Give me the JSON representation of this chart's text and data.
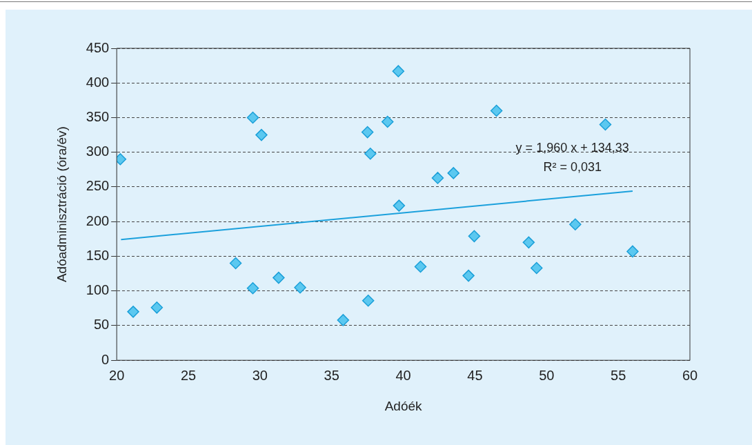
{
  "chart_data": {
    "type": "scatter",
    "xlabel": "Adóék",
    "ylabel": "Adóadminisztráció (óra/év)",
    "xlim": [
      20,
      60
    ],
    "xticks": [
      20,
      25,
      30,
      35,
      40,
      45,
      50,
      55,
      60
    ],
    "ylim": [
      0,
      450
    ],
    "yticks": [
      0,
      50,
      100,
      150,
      200,
      250,
      300,
      350,
      400,
      450
    ],
    "grid": "y",
    "legend": false,
    "marker": "diamond",
    "series": [
      {
        "color": "#5bc8f0",
        "x": [
          20.25,
          21.15,
          22.8,
          28.3,
          29.5,
          29.5,
          30.1,
          31.3,
          32.8,
          35.8,
          37.5,
          37.55,
          37.7,
          38.9,
          39.65,
          39.7,
          41.2,
          42.4,
          43.5,
          44.55,
          44.95,
          46.5,
          48.75,
          49.3,
          52.0,
          54.1,
          56.0
        ],
        "values": [
          290,
          70,
          76,
          140,
          350,
          104,
          325,
          119,
          105,
          58,
          329,
          86,
          298,
          344,
          417,
          223,
          135,
          263,
          270,
          122,
          179,
          360,
          170,
          133,
          196,
          340,
          157
        ]
      },
      {
        "type": "line",
        "color": "#1aa0dc",
        "marker": "none",
        "line_style": "solid",
        "x": [
          20.3,
          56
        ],
        "values": [
          174.1,
          244.1
        ]
      }
    ],
    "annotations": [
      "y = 1,960 x + 134,33",
      "R² = 0,031"
    ]
  }
}
